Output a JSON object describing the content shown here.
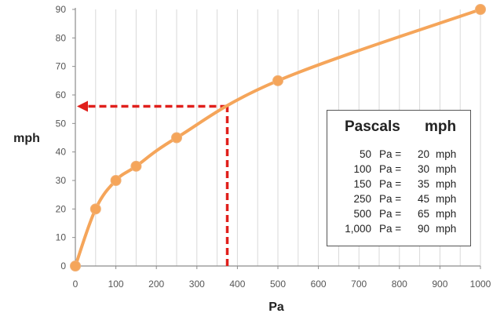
{
  "chart_data": {
    "type": "line",
    "xlabel": "Pa",
    "ylabel": "mph",
    "xlim": [
      0,
      1000
    ],
    "ylim": [
      0,
      90
    ],
    "xticks": [
      "0",
      "100",
      "200",
      "300",
      "400",
      "500",
      "600",
      "700",
      "800",
      "900",
      "1000"
    ],
    "yticks": [
      "0",
      "10",
      "20",
      "30",
      "40",
      "50",
      "60",
      "70",
      "80",
      "90"
    ],
    "grid": "vertical",
    "series": [
      {
        "points": [
          [
            0,
            0
          ],
          [
            50,
            20
          ],
          [
            100,
            30
          ],
          [
            150,
            35
          ],
          [
            250,
            45
          ],
          [
            500,
            65
          ],
          [
            1000,
            90
          ]
        ]
      }
    ],
    "annotation": {
      "type": "dashed-arrow",
      "x": 375,
      "y": 56
    },
    "colors": {
      "line": "#f5a55a",
      "marker": "#f5a55a",
      "annotation": "#e0201c",
      "grid": "#d9d9d9"
    }
  },
  "legend": {
    "header": {
      "left": "Pascals",
      "right": "mph"
    },
    "rows": [
      {
        "pa": "50",
        "pa_unit": "Pa =",
        "mph": "20",
        "mph_unit": "mph"
      },
      {
        "pa": "100",
        "pa_unit": "Pa =",
        "mph": "30",
        "mph_unit": "mph"
      },
      {
        "pa": "150",
        "pa_unit": "Pa =",
        "mph": "35",
        "mph_unit": "mph"
      },
      {
        "pa": "250",
        "pa_unit": "Pa =",
        "mph": "45",
        "mph_unit": "mph"
      },
      {
        "pa": "500",
        "pa_unit": "Pa =",
        "mph": "65",
        "mph_unit": "mph"
      },
      {
        "pa": "1,000",
        "pa_unit": "Pa =",
        "mph": "90",
        "mph_unit": "mph"
      }
    ]
  }
}
